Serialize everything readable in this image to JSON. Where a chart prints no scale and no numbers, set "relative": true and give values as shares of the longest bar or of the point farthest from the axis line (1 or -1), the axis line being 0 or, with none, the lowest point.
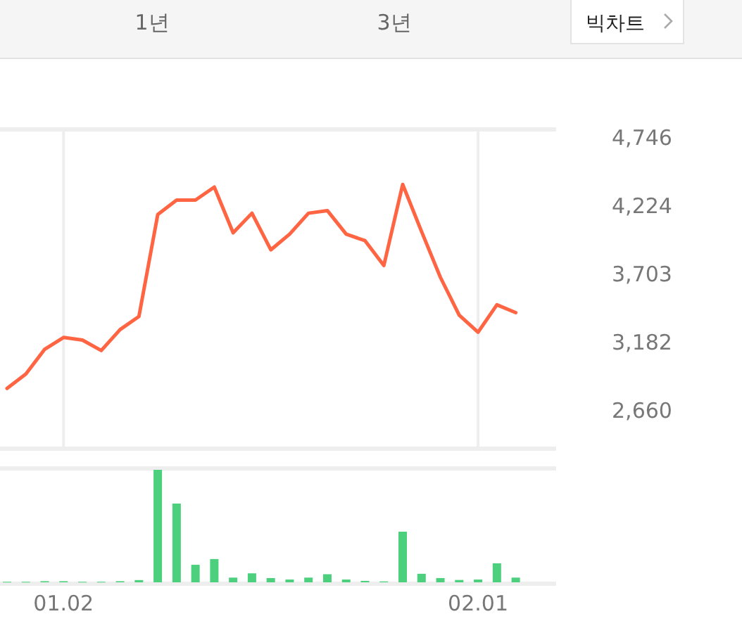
{
  "chart_data": [
    {
      "type": "line",
      "annotations": [
        "1년",
        "3년",
        "빅차트"
      ],
      "categories": [
        null,
        null,
        null,
        "01.02",
        null,
        null,
        null,
        null,
        null,
        null,
        null,
        null,
        null,
        null,
        null,
        null,
        null,
        null,
        null,
        null,
        null,
        null,
        null,
        null,
        null,
        "02.01",
        null,
        null
      ],
      "series": [
        {
          "color": "#ff6543",
          "values": [
            2830,
            2940,
            3130,
            3220,
            3200,
            3120,
            3280,
            3380,
            4160,
            4270,
            4270,
            4370,
            4020,
            4170,
            3890,
            4010,
            4170,
            4190,
            4010,
            3960,
            3770,
            4390,
            4030,
            3680,
            3390,
            3260,
            3470,
            3410
          ]
        }
      ],
      "ylim": [
        2380,
        4800
      ],
      "yticks": [
        {
          "value": 2660,
          "label": "2,660"
        },
        {
          "value": 3182,
          "label": "3,182"
        },
        {
          "value": 3703,
          "label": "3,703"
        },
        {
          "value": 4224,
          "label": "4,224"
        },
        {
          "value": 4746,
          "label": "4,746"
        }
      ],
      "grid": "x",
      "tick_labels": "y",
      "marker": "none"
    },
    {
      "type": "bar",
      "relative": true,
      "categories": [
        null,
        null,
        null,
        "01.02",
        null,
        null,
        null,
        null,
        null,
        null,
        null,
        null,
        null,
        null,
        null,
        null,
        null,
        null,
        null,
        null,
        null,
        null,
        null,
        null,
        null,
        "02.01",
        null,
        null
      ],
      "series": [
        {
          "color": "#4cd07d",
          "values": [
            0.005,
            0.005,
            0.01,
            0.01,
            0.005,
            0.005,
            0.01,
            0.02,
            1,
            0.7,
            0.156,
            0.207,
            0.042,
            0.08,
            0.038,
            0.025,
            0.042,
            0.072,
            0.025,
            0.013,
            0.008,
            0.45,
            0.076,
            0.038,
            0.021,
            0.025,
            0.169,
            0.042
          ]
        }
      ],
      "tick_labels": "x"
    }
  ]
}
